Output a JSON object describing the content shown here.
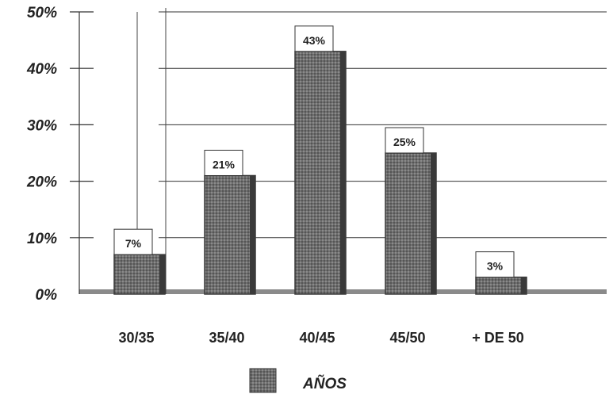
{
  "chart_data": {
    "type": "bar",
    "categories": [
      "30/35",
      "35/40",
      "40/45",
      "45/50",
      "+ DE 50"
    ],
    "values": [
      7,
      21,
      43,
      25,
      3
    ],
    "data_labels": [
      "7%",
      "21%",
      "43%",
      "25%",
      "3%"
    ],
    "yticks": [
      "0%",
      "10%",
      "20%",
      "30%",
      "40%",
      "50%"
    ],
    "ylim": [
      0,
      50
    ],
    "grid": true,
    "legend_position": "bottom-center",
    "series": [
      {
        "name": "AÑOS",
        "values": [
          7,
          21,
          43,
          25,
          3
        ]
      }
    ],
    "colors": {
      "bar": "#6b6b6b",
      "bar_dark": "#3a3a3a",
      "grid": "#333333",
      "floor": "#8a8a8a"
    }
  }
}
